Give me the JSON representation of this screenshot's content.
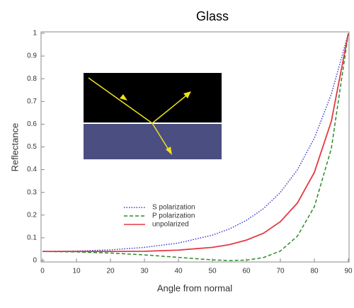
{
  "chart_data": {
    "type": "line",
    "title": "Glass",
    "x_label": "Angle from normal",
    "y_label": "Reflectance",
    "x": [
      0,
      10,
      20,
      30,
      40,
      50,
      55,
      60,
      65,
      70,
      75,
      80,
      85,
      90
    ],
    "series": [
      {
        "name": "S polarization",
        "color": "#3b3bd0",
        "style": "dotted",
        "values": [
          0.04,
          0.042,
          0.047,
          0.058,
          0.077,
          0.112,
          0.139,
          0.177,
          0.228,
          0.3,
          0.399,
          0.539,
          0.732,
          1
        ]
      },
      {
        "name": "P polarization",
        "color": "#2a8a2a",
        "style": "dashed",
        "values": [
          0.04,
          0.038,
          0.033,
          0.025,
          0.014,
          0.003,
          0,
          0.002,
          0.013,
          0.042,
          0.107,
          0.237,
          0.493,
          1
        ]
      },
      {
        "name": "unpolarized",
        "color": "#e23a42",
        "style": "solid",
        "values": [
          0.04,
          0.04,
          0.04,
          0.041,
          0.046,
          0.058,
          0.07,
          0.09,
          0.12,
          0.171,
          0.253,
          0.388,
          0.613,
          1
        ]
      }
    ],
    "xlim": [
      0,
      90
    ],
    "ylim": [
      0,
      1
    ],
    "xticks": [
      0,
      10,
      20,
      30,
      40,
      50,
      60,
      70,
      80,
      90
    ],
    "yticks": [
      0,
      0.1,
      0.2,
      0.3,
      0.4,
      0.5,
      0.6,
      0.7,
      0.8,
      0.9,
      1
    ],
    "grid": false
  }
}
